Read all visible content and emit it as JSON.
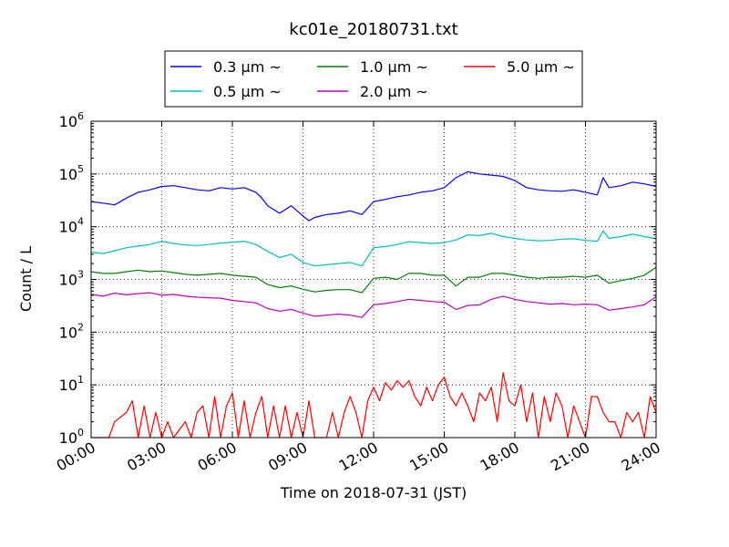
{
  "chart_data": {
    "type": "line",
    "title": "kc01e_20180731.txt",
    "xlabel": "Time on 2018-07-31 (JST)",
    "ylabel": "Count / L",
    "y_scale": "log",
    "ylim": [
      1,
      1000000
    ],
    "xlim": [
      "00:00",
      "24:00"
    ],
    "x_ticks": [
      "00:00",
      "03:00",
      "06:00",
      "09:00",
      "12:00",
      "15:00",
      "18:00",
      "21:00",
      "24:00"
    ],
    "y_ticks": [
      {
        "base": "10",
        "exp": "0",
        "value": 1
      },
      {
        "base": "10",
        "exp": "1",
        "value": 10
      },
      {
        "base": "10",
        "exp": "2",
        "value": 100
      },
      {
        "base": "10",
        "exp": "3",
        "value": 1000
      },
      {
        "base": "10",
        "exp": "4",
        "value": 10000
      },
      {
        "base": "10",
        "exp": "5",
        "value": 100000
      },
      {
        "base": "10",
        "exp": "6",
        "value": 1000000
      }
    ],
    "grid": true,
    "legend_position": "top-center",
    "series": [
      {
        "name": "0.3 μm ~",
        "color": "#0000ff",
        "points": [
          [
            "00:00",
            30000
          ],
          [
            "00:30",
            28000
          ],
          [
            "01:00",
            26000
          ],
          [
            "01:30",
            35000
          ],
          [
            "02:00",
            45000
          ],
          [
            "02:30",
            50000
          ],
          [
            "03:00",
            58000
          ],
          [
            "03:30",
            60000
          ],
          [
            "04:00",
            55000
          ],
          [
            "04:30",
            50000
          ],
          [
            "05:00",
            48000
          ],
          [
            "05:30",
            55000
          ],
          [
            "06:00",
            52000
          ],
          [
            "06:30",
            55000
          ],
          [
            "07:00",
            45000
          ],
          [
            "07:15",
            35000
          ],
          [
            "07:30",
            25000
          ],
          [
            "08:00",
            18000
          ],
          [
            "08:30",
            25000
          ],
          [
            "09:00",
            16000
          ],
          [
            "09:15",
            13000
          ],
          [
            "09:30",
            15000
          ],
          [
            "10:00",
            17000
          ],
          [
            "10:30",
            18000
          ],
          [
            "11:00",
            20000
          ],
          [
            "11:30",
            17000
          ],
          [
            "12:00",
            30000
          ],
          [
            "12:30",
            33000
          ],
          [
            "13:00",
            37000
          ],
          [
            "13:30",
            40000
          ],
          [
            "14:00",
            45000
          ],
          [
            "14:30",
            48000
          ],
          [
            "15:00",
            55000
          ],
          [
            "15:30",
            85000
          ],
          [
            "16:00",
            110000
          ],
          [
            "16:30",
            100000
          ],
          [
            "17:00",
            95000
          ],
          [
            "17:30",
            90000
          ],
          [
            "18:00",
            75000
          ],
          [
            "18:30",
            55000
          ],
          [
            "19:00",
            50000
          ],
          [
            "19:30",
            48000
          ],
          [
            "20:00",
            47000
          ],
          [
            "20:30",
            50000
          ],
          [
            "21:00",
            45000
          ],
          [
            "21:30",
            40000
          ],
          [
            "21:45",
            85000
          ],
          [
            "22:00",
            55000
          ],
          [
            "22:30",
            60000
          ],
          [
            "23:00",
            70000
          ],
          [
            "23:30",
            65000
          ],
          [
            "24:00",
            58000
          ]
        ]
      },
      {
        "name": "0.5 μm ~",
        "color": "#00bfbf",
        "points": [
          [
            "00:00",
            3300
          ],
          [
            "00:30",
            3100
          ],
          [
            "01:00",
            3500
          ],
          [
            "01:30",
            4000
          ],
          [
            "02:00",
            4300
          ],
          [
            "02:30",
            4600
          ],
          [
            "03:00",
            5300
          ],
          [
            "03:30",
            4800
          ],
          [
            "04:00",
            4500
          ],
          [
            "04:30",
            4400
          ],
          [
            "05:00",
            4600
          ],
          [
            "05:30",
            4900
          ],
          [
            "06:00",
            5100
          ],
          [
            "06:30",
            5300
          ],
          [
            "07:00",
            4600
          ],
          [
            "07:30",
            3400
          ],
          [
            "08:00",
            2600
          ],
          [
            "08:30",
            3000
          ],
          [
            "09:00",
            2100
          ],
          [
            "09:30",
            1800
          ],
          [
            "10:00",
            1900
          ],
          [
            "10:30",
            2000
          ],
          [
            "11:00",
            2100
          ],
          [
            "11:30",
            1800
          ],
          [
            "12:00",
            4000
          ],
          [
            "12:30",
            4200
          ],
          [
            "13:00",
            4600
          ],
          [
            "13:30",
            5200
          ],
          [
            "14:00",
            5000
          ],
          [
            "14:30",
            4800
          ],
          [
            "15:00",
            5000
          ],
          [
            "15:30",
            5600
          ],
          [
            "16:00",
            7000
          ],
          [
            "16:30",
            6800
          ],
          [
            "17:00",
            7500
          ],
          [
            "17:30",
            6500
          ],
          [
            "18:00",
            6000
          ],
          [
            "18:30",
            5600
          ],
          [
            "19:00",
            5400
          ],
          [
            "19:30",
            5500
          ],
          [
            "20:00",
            5800
          ],
          [
            "20:30",
            5900
          ],
          [
            "21:00",
            5500
          ],
          [
            "21:30",
            5300
          ],
          [
            "21:45",
            8300
          ],
          [
            "22:00",
            6000
          ],
          [
            "22:30",
            6500
          ],
          [
            "23:00",
            7200
          ],
          [
            "23:30",
            6500
          ],
          [
            "24:00",
            5900
          ]
        ]
      },
      {
        "name": "1.0 μm ~",
        "color": "#008000",
        "points": [
          [
            "00:00",
            1400
          ],
          [
            "00:30",
            1300
          ],
          [
            "01:00",
            1300
          ],
          [
            "01:30",
            1400
          ],
          [
            "02:00",
            1500
          ],
          [
            "02:30",
            1400
          ],
          [
            "03:00",
            1450
          ],
          [
            "03:30",
            1350
          ],
          [
            "04:00",
            1250
          ],
          [
            "04:30",
            1200
          ],
          [
            "05:00",
            1250
          ],
          [
            "05:30",
            1300
          ],
          [
            "06:00",
            1200
          ],
          [
            "06:30",
            1150
          ],
          [
            "07:00",
            1100
          ],
          [
            "07:30",
            800
          ],
          [
            "08:00",
            700
          ],
          [
            "08:30",
            750
          ],
          [
            "09:00",
            650
          ],
          [
            "09:30",
            580
          ],
          [
            "10:00",
            620
          ],
          [
            "10:30",
            640
          ],
          [
            "11:00",
            640
          ],
          [
            "11:30",
            560
          ],
          [
            "12:00",
            1050
          ],
          [
            "12:30",
            1100
          ],
          [
            "13:00",
            1000
          ],
          [
            "13:30",
            1300
          ],
          [
            "14:00",
            1300
          ],
          [
            "14:30",
            1200
          ],
          [
            "15:00",
            1200
          ],
          [
            "15:30",
            750
          ],
          [
            "16:00",
            1100
          ],
          [
            "16:30",
            1100
          ],
          [
            "17:00",
            1300
          ],
          [
            "17:30",
            1300
          ],
          [
            "18:00",
            1200
          ],
          [
            "18:30",
            1100
          ],
          [
            "19:00",
            1050
          ],
          [
            "19:30",
            1100
          ],
          [
            "20:00",
            1100
          ],
          [
            "20:30",
            1150
          ],
          [
            "21:00",
            1100
          ],
          [
            "21:30",
            1200
          ],
          [
            "22:00",
            850
          ],
          [
            "22:30",
            950
          ],
          [
            "23:00",
            1050
          ],
          [
            "23:30",
            1200
          ],
          [
            "24:00",
            1700
          ]
        ]
      },
      {
        "name": "2.0 μm ~",
        "color": "#bf00bf",
        "points": [
          [
            "00:00",
            520
          ],
          [
            "00:30",
            480
          ],
          [
            "01:00",
            550
          ],
          [
            "01:30",
            510
          ],
          [
            "02:00",
            540
          ],
          [
            "02:30",
            560
          ],
          [
            "03:00",
            500
          ],
          [
            "03:30",
            520
          ],
          [
            "04:00",
            480
          ],
          [
            "04:30",
            460
          ],
          [
            "05:00",
            450
          ],
          [
            "05:30",
            440
          ],
          [
            "06:00",
            400
          ],
          [
            "06:30",
            380
          ],
          [
            "07:00",
            360
          ],
          [
            "07:30",
            280
          ],
          [
            "08:00",
            250
          ],
          [
            "08:30",
            270
          ],
          [
            "09:00",
            230
          ],
          [
            "09:30",
            200
          ],
          [
            "10:00",
            210
          ],
          [
            "10:30",
            220
          ],
          [
            "11:00",
            210
          ],
          [
            "11:30",
            190
          ],
          [
            "12:00",
            330
          ],
          [
            "12:30",
            350
          ],
          [
            "13:00",
            380
          ],
          [
            "13:30",
            420
          ],
          [
            "14:00",
            400
          ],
          [
            "14:30",
            380
          ],
          [
            "15:00",
            370
          ],
          [
            "15:30",
            270
          ],
          [
            "16:00",
            320
          ],
          [
            "16:30",
            330
          ],
          [
            "17:00",
            420
          ],
          [
            "17:30",
            480
          ],
          [
            "18:00",
            420
          ],
          [
            "18:30",
            380
          ],
          [
            "19:00",
            360
          ],
          [
            "19:30",
            340
          ],
          [
            "20:00",
            350
          ],
          [
            "20:30",
            330
          ],
          [
            "21:00",
            340
          ],
          [
            "21:30",
            330
          ],
          [
            "22:00",
            260
          ],
          [
            "22:30",
            280
          ],
          [
            "23:00",
            300
          ],
          [
            "23:30",
            330
          ],
          [
            "24:00",
            470
          ]
        ]
      },
      {
        "name": "5.0 μm ~",
        "color": "#ff0000",
        "points": [
          [
            "00:00",
            1
          ],
          [
            "00:45",
            1
          ],
          [
            "01:00",
            2
          ],
          [
            "01:30",
            3
          ],
          [
            "01:45",
            5
          ],
          [
            "02:00",
            1
          ],
          [
            "02:15",
            4
          ],
          [
            "02:30",
            1
          ],
          [
            "02:45",
            3
          ],
          [
            "03:00",
            1
          ],
          [
            "03:15",
            2
          ],
          [
            "03:30",
            1
          ],
          [
            "04:00",
            2
          ],
          [
            "04:15",
            1
          ],
          [
            "04:30",
            3
          ],
          [
            "04:45",
            4
          ],
          [
            "05:00",
            1
          ],
          [
            "05:15",
            6
          ],
          [
            "05:30",
            1
          ],
          [
            "05:45",
            4
          ],
          [
            "06:00",
            7
          ],
          [
            "06:15",
            1
          ],
          [
            "06:30",
            5
          ],
          [
            "06:45",
            1
          ],
          [
            "07:00",
            3
          ],
          [
            "07:15",
            6
          ],
          [
            "07:30",
            1
          ],
          [
            "07:45",
            4
          ],
          [
            "08:00",
            1
          ],
          [
            "08:15",
            4
          ],
          [
            "08:30",
            1
          ],
          [
            "08:45",
            3
          ],
          [
            "09:00",
            1
          ],
          [
            "09:15",
            5
          ],
          [
            "09:30",
            1
          ],
          [
            "10:00",
            1
          ],
          [
            "10:15",
            3
          ],
          [
            "10:30",
            1
          ],
          [
            "10:45",
            3
          ],
          [
            "11:00",
            6
          ],
          [
            "11:15",
            3
          ],
          [
            "11:30",
            1
          ],
          [
            "11:45",
            5
          ],
          [
            "12:00",
            9
          ],
          [
            "12:15",
            5
          ],
          [
            "12:30",
            11
          ],
          [
            "12:45",
            8
          ],
          [
            "13:00",
            12
          ],
          [
            "13:15",
            9
          ],
          [
            "13:30",
            12
          ],
          [
            "13:45",
            6
          ],
          [
            "14:00",
            4
          ],
          [
            "14:15",
            9
          ],
          [
            "14:30",
            5
          ],
          [
            "14:45",
            10
          ],
          [
            "15:00",
            14
          ],
          [
            "15:15",
            6
          ],
          [
            "15:30",
            4
          ],
          [
            "15:45",
            7
          ],
          [
            "16:00",
            4
          ],
          [
            "16:15",
            2
          ],
          [
            "16:30",
            7
          ],
          [
            "16:45",
            5
          ],
          [
            "17:00",
            9
          ],
          [
            "17:15",
            2
          ],
          [
            "17:30",
            17
          ],
          [
            "17:45",
            5
          ],
          [
            "18:00",
            4
          ],
          [
            "18:15",
            10
          ],
          [
            "18:30",
            2
          ],
          [
            "18:45",
            7
          ],
          [
            "19:00",
            1
          ],
          [
            "19:15",
            6
          ],
          [
            "19:30",
            2
          ],
          [
            "19:45",
            7
          ],
          [
            "20:00",
            4
          ],
          [
            "20:15",
            1
          ],
          [
            "20:30",
            4
          ],
          [
            "20:45",
            2
          ],
          [
            "21:00",
            1
          ],
          [
            "21:15",
            6
          ],
          [
            "21:30",
            6
          ],
          [
            "21:45",
            3
          ],
          [
            "22:00",
            2
          ],
          [
            "22:15",
            2
          ],
          [
            "22:30",
            1
          ],
          [
            "22:45",
            3
          ],
          [
            "23:00",
            2
          ],
          [
            "23:15",
            3
          ],
          [
            "23:30",
            1
          ],
          [
            "23:45",
            6
          ],
          [
            "24:00",
            3
          ]
        ]
      }
    ]
  }
}
